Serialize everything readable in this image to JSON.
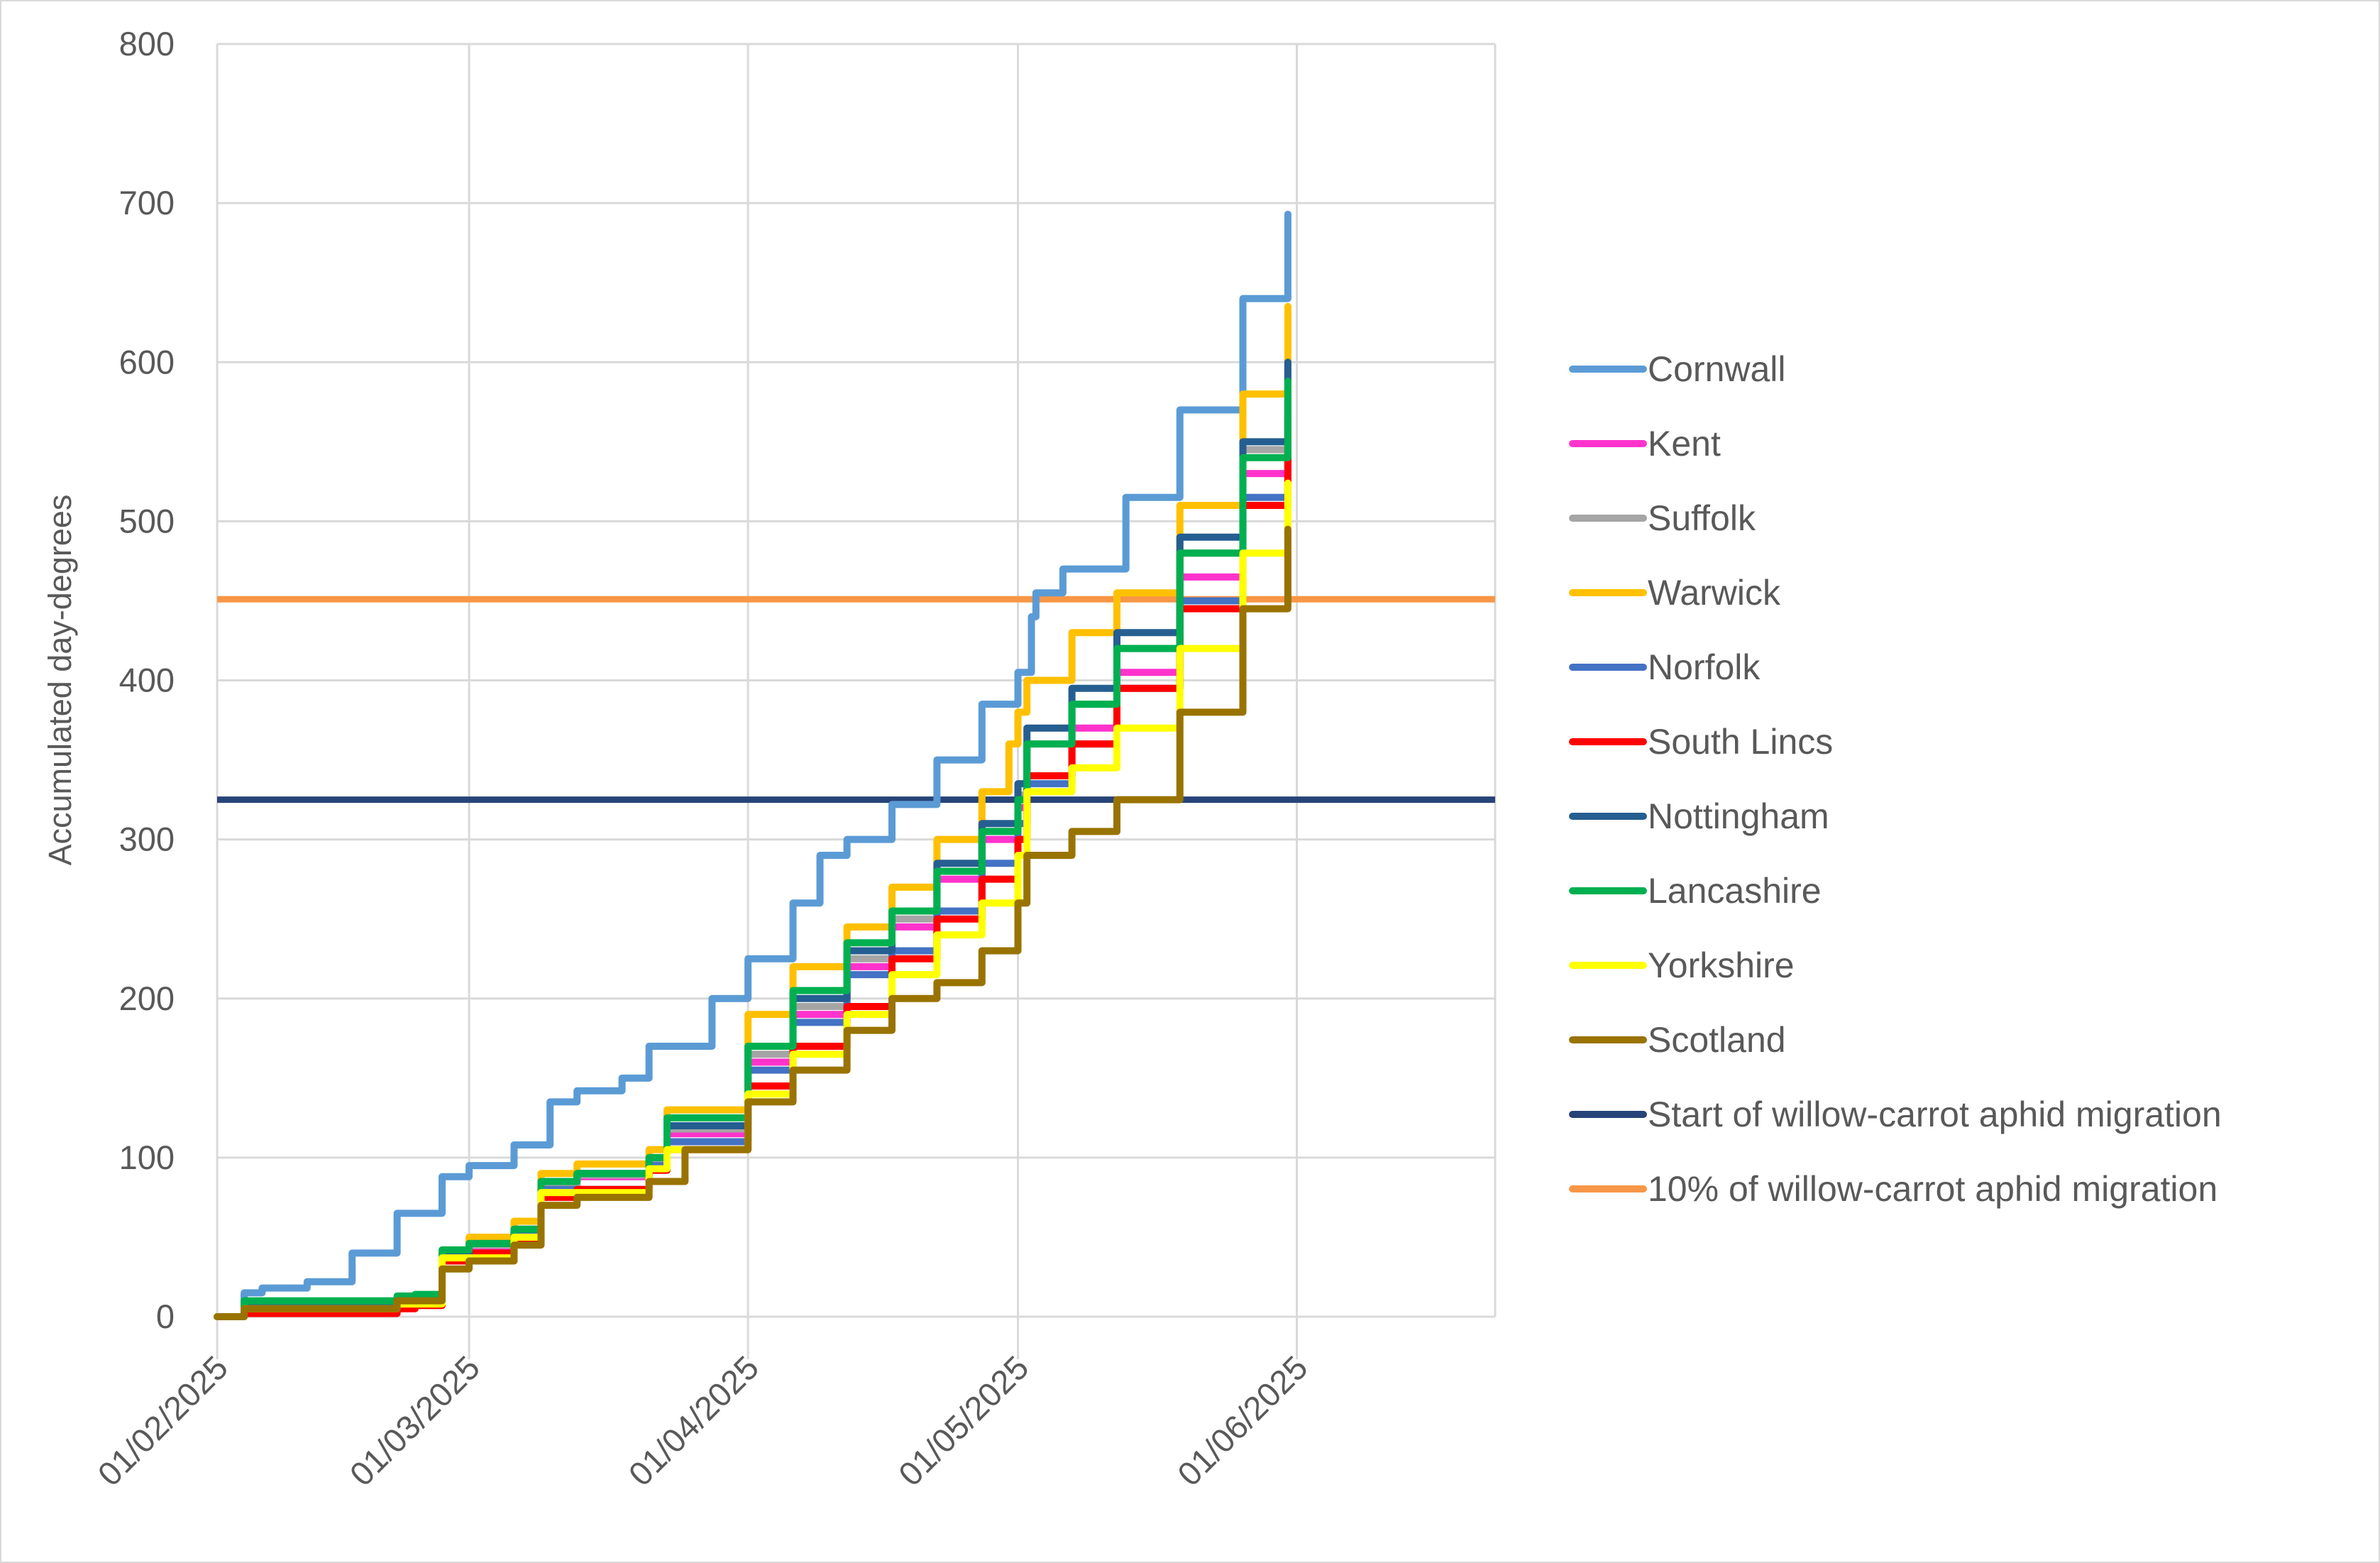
{
  "chart_data": {
    "type": "line",
    "title": "",
    "xlabel": "",
    "ylabel": "Accumulated day-degrees",
    "x_unit": "days since 01/02/2025",
    "xlim_dates": [
      "01/02/2025",
      "23/06/2025"
    ],
    "ylim": [
      0,
      800
    ],
    "y_ticks": [
      0,
      100,
      200,
      300,
      400,
      500,
      600,
      700,
      800
    ],
    "x_ticks": [
      {
        "label": "01/02/2025",
        "day": 0
      },
      {
        "label": "01/03/2025",
        "day": 28
      },
      {
        "label": "01/04/2025",
        "day": 59
      },
      {
        "label": "01/05/2025",
        "day": 89
      },
      {
        "label": "01/06/2025",
        "day": 120
      }
    ],
    "grid": true,
    "legend_position": "right",
    "series": [
      {
        "name": "Cornwall",
        "color": "#5B9BD5",
        "points": [
          [
            0,
            0
          ],
          [
            3,
            15
          ],
          [
            5,
            18
          ],
          [
            10,
            22
          ],
          [
            15,
            40
          ],
          [
            20,
            65
          ],
          [
            25,
            88
          ],
          [
            28,
            95
          ],
          [
            33,
            108
          ],
          [
            37,
            135
          ],
          [
            40,
            142
          ],
          [
            45,
            150
          ],
          [
            48,
            170
          ],
          [
            55,
            200
          ],
          [
            59,
            225
          ],
          [
            64,
            260
          ],
          [
            67,
            290
          ],
          [
            70,
            300
          ],
          [
            75,
            322
          ],
          [
            80,
            350
          ],
          [
            85,
            385
          ],
          [
            89,
            405
          ],
          [
            90.5,
            440
          ],
          [
            91,
            455
          ],
          [
            94,
            470
          ],
          [
            101,
            515
          ],
          [
            107,
            570
          ],
          [
            114,
            640
          ],
          [
            119,
            693
          ]
        ]
      },
      {
        "name": "Kent",
        "color": "#FF33CC",
        "points": [
          [
            0,
            0
          ],
          [
            3,
            5
          ],
          [
            20,
            8
          ],
          [
            22,
            10
          ],
          [
            25,
            38
          ],
          [
            28,
            44
          ],
          [
            33,
            53
          ],
          [
            36,
            82
          ],
          [
            40,
            88
          ],
          [
            48,
            98
          ],
          [
            50,
            115
          ],
          [
            59,
            160
          ],
          [
            64,
            190
          ],
          [
            70,
            220
          ],
          [
            75,
            245
          ],
          [
            80,
            275
          ],
          [
            85,
            300
          ],
          [
            89,
            320
          ],
          [
            90,
            340
          ],
          [
            95,
            370
          ],
          [
            100,
            405
          ],
          [
            107,
            465
          ],
          [
            114,
            530
          ],
          [
            119,
            582
          ]
        ]
      },
      {
        "name": "Suffolk",
        "color": "#A5A5A5",
        "points": [
          [
            0,
            0
          ],
          [
            3,
            7
          ],
          [
            20,
            9
          ],
          [
            22,
            11
          ],
          [
            25,
            39
          ],
          [
            28,
            45
          ],
          [
            33,
            54
          ],
          [
            36,
            83
          ],
          [
            40,
            89
          ],
          [
            48,
            99
          ],
          [
            50,
            118
          ],
          [
            59,
            165
          ],
          [
            64,
            195
          ],
          [
            70,
            225
          ],
          [
            75,
            250
          ],
          [
            80,
            280
          ],
          [
            85,
            305
          ],
          [
            89,
            328
          ],
          [
            90,
            360
          ],
          [
            95,
            385
          ],
          [
            100,
            420
          ],
          [
            107,
            480
          ],
          [
            114,
            545
          ],
          [
            119,
            597
          ]
        ]
      },
      {
        "name": "Warwick",
        "color": "#FFC000",
        "points": [
          [
            0,
            0
          ],
          [
            3,
            8
          ],
          [
            20,
            10
          ],
          [
            22,
            12
          ],
          [
            25,
            40
          ],
          [
            28,
            50
          ],
          [
            33,
            60
          ],
          [
            36,
            90
          ],
          [
            40,
            96
          ],
          [
            48,
            105
          ],
          [
            50,
            130
          ],
          [
            59,
            190
          ],
          [
            64,
            220
          ],
          [
            70,
            245
          ],
          [
            75,
            270
          ],
          [
            80,
            300
          ],
          [
            85,
            330
          ],
          [
            88,
            360
          ],
          [
            89,
            380
          ],
          [
            90,
            400
          ],
          [
            95,
            430
          ],
          [
            100,
            455
          ],
          [
            107,
            510
          ],
          [
            114,
            580
          ],
          [
            119,
            635
          ]
        ]
      },
      {
        "name": "Norfolk",
        "color": "#4472C4",
        "points": [
          [
            0,
            0
          ],
          [
            3,
            5
          ],
          [
            20,
            8
          ],
          [
            25,
            37
          ],
          [
            33,
            52
          ],
          [
            36,
            80
          ],
          [
            48,
            95
          ],
          [
            50,
            110
          ],
          [
            59,
            155
          ],
          [
            64,
            185
          ],
          [
            70,
            215
          ],
          [
            75,
            230
          ],
          [
            80,
            255
          ],
          [
            85,
            285
          ],
          [
            89,
            310
          ],
          [
            90,
            335
          ],
          [
            95,
            360
          ],
          [
            100,
            395
          ],
          [
            107,
            450
          ],
          [
            114,
            515
          ],
          [
            119,
            567
          ]
        ]
      },
      {
        "name": "South Lincs",
        "color": "#FF0000",
        "points": [
          [
            0,
            0
          ],
          [
            3,
            2
          ],
          [
            20,
            5
          ],
          [
            22,
            7
          ],
          [
            25,
            35
          ],
          [
            28,
            40
          ],
          [
            33,
            48
          ],
          [
            36,
            75
          ],
          [
            40,
            80
          ],
          [
            48,
            92
          ],
          [
            50,
            105
          ],
          [
            59,
            145
          ],
          [
            64,
            170
          ],
          [
            70,
            195
          ],
          [
            75,
            225
          ],
          [
            80,
            250
          ],
          [
            85,
            275
          ],
          [
            89,
            300
          ],
          [
            90,
            340
          ],
          [
            95,
            360
          ],
          [
            100,
            395
          ],
          [
            107,
            445
          ],
          [
            114,
            510
          ],
          [
            119,
            565
          ]
        ]
      },
      {
        "name": "Nottingham",
        "color": "#255E91",
        "points": [
          [
            0,
            0
          ],
          [
            3,
            8
          ],
          [
            20,
            10
          ],
          [
            22,
            12
          ],
          [
            25,
            40
          ],
          [
            28,
            46
          ],
          [
            33,
            55
          ],
          [
            36,
            85
          ],
          [
            40,
            90
          ],
          [
            48,
            100
          ],
          [
            50,
            120
          ],
          [
            59,
            170
          ],
          [
            64,
            200
          ],
          [
            70,
            230
          ],
          [
            75,
            255
          ],
          [
            80,
            285
          ],
          [
            85,
            310
          ],
          [
            89,
            335
          ],
          [
            90,
            370
          ],
          [
            95,
            395
          ],
          [
            100,
            430
          ],
          [
            107,
            490
          ],
          [
            114,
            550
          ],
          [
            119,
            600
          ]
        ]
      },
      {
        "name": "Lancashire",
        "color": "#00B050",
        "points": [
          [
            0,
            0
          ],
          [
            3,
            10
          ],
          [
            20,
            13
          ],
          [
            22,
            14
          ],
          [
            25,
            42
          ],
          [
            28,
            46
          ],
          [
            33,
            55
          ],
          [
            36,
            85
          ],
          [
            40,
            90
          ],
          [
            48,
            100
          ],
          [
            50,
            125
          ],
          [
            59,
            170
          ],
          [
            64,
            205
          ],
          [
            70,
            235
          ],
          [
            75,
            255
          ],
          [
            80,
            280
          ],
          [
            85,
            305
          ],
          [
            89,
            325
          ],
          [
            90,
            360
          ],
          [
            95,
            385
          ],
          [
            100,
            420
          ],
          [
            107,
            480
          ],
          [
            114,
            540
          ],
          [
            119,
            588
          ]
        ]
      },
      {
        "name": "Yorkshire",
        "color": "#FFFF00",
        "points": [
          [
            0,
            0
          ],
          [
            3,
            5
          ],
          [
            20,
            8
          ],
          [
            25,
            37
          ],
          [
            33,
            50
          ],
          [
            36,
            78
          ],
          [
            48,
            93
          ],
          [
            50,
            105
          ],
          [
            59,
            140
          ],
          [
            64,
            165
          ],
          [
            70,
            190
          ],
          [
            75,
            215
          ],
          [
            80,
            240
          ],
          [
            85,
            260
          ],
          [
            89,
            290
          ],
          [
            90,
            330
          ],
          [
            95,
            345
          ],
          [
            100,
            370
          ],
          [
            107,
            420
          ],
          [
            114,
            480
          ],
          [
            119,
            524
          ]
        ]
      },
      {
        "name": "Scotland",
        "color": "#997300",
        "points": [
          [
            0,
            0
          ],
          [
            3,
            5
          ],
          [
            20,
            10
          ],
          [
            22,
            10
          ],
          [
            25,
            30
          ],
          [
            28,
            35
          ],
          [
            33,
            45
          ],
          [
            36,
            70
          ],
          [
            40,
            75
          ],
          [
            48,
            85
          ],
          [
            52,
            105
          ],
          [
            59,
            135
          ],
          [
            64,
            155
          ],
          [
            70,
            180
          ],
          [
            75,
            200
          ],
          [
            80,
            210
          ],
          [
            85,
            230
          ],
          [
            89,
            260
          ],
          [
            90,
            290
          ],
          [
            95,
            305
          ],
          [
            100,
            325
          ],
          [
            107,
            380
          ],
          [
            114,
            445
          ],
          [
            119,
            495
          ]
        ]
      }
    ],
    "thresholds": [
      {
        "name": "Start of willow-carrot aphid migration",
        "color": "#264478",
        "value": 325
      },
      {
        "name": "10% of willow-carrot aphid migration",
        "color": "#F79646",
        "value": 451
      }
    ]
  }
}
